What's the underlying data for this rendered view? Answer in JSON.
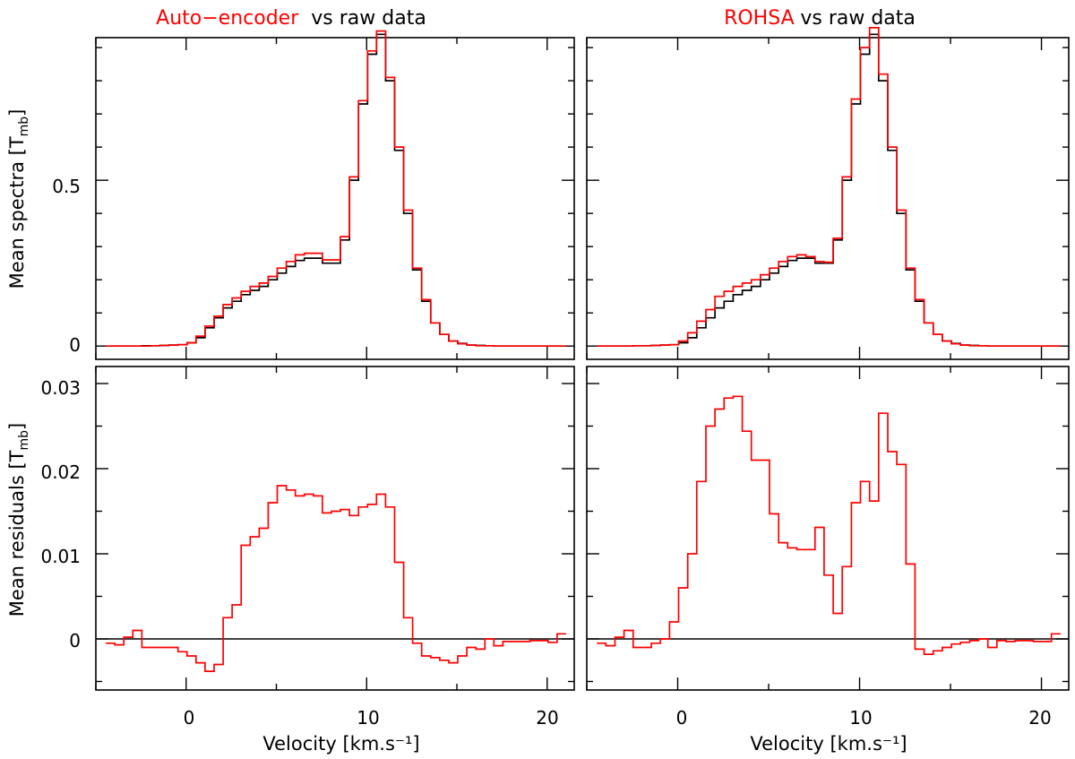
{
  "colors": {
    "model": "#ff0000",
    "raw": "#000000",
    "frame": "#000000",
    "zero_line": "#000000"
  },
  "titles": {
    "left": {
      "model": "Auto−encoder",
      "rest": "vs raw data"
    },
    "right": {
      "model": "ROHSA",
      "rest": "vs raw data"
    }
  },
  "axis_labels": {
    "x": "Velocity [km.s⁻¹]",
    "y_top": "Mean spectra [T",
    "y_top_sub": "mb",
    "y_bottom": "Mean residuals [T",
    "y_bottom_sub": "mb",
    "close": "]"
  },
  "ticks": {
    "x": [
      "0",
      "10",
      "20"
    ],
    "y_top": [
      "0",
      "0.5"
    ],
    "y_bottom": [
      "0",
      "0.01",
      "0.02",
      "0.03"
    ]
  },
  "chart_data": [
    {
      "id": "top-left",
      "type": "line",
      "step": true,
      "xlim": [
        -5,
        21.5
      ],
      "ylim": [
        -0.04,
        0.93
      ],
      "x": [
        -4.2,
        -3.7,
        -3.2,
        -2.7,
        -2.2,
        -1.7,
        -1.2,
        -0.7,
        -0.2,
        0.3,
        0.8,
        1.3,
        1.8,
        2.3,
        2.8,
        3.3,
        3.8,
        4.3,
        4.8,
        5.3,
        5.8,
        6.3,
        6.8,
        7.3,
        7.8,
        8.3,
        8.8,
        9.3,
        9.8,
        10.3,
        10.8,
        11.3,
        11.8,
        12.3,
        12.8,
        13.3,
        13.8,
        14.3,
        14.8,
        15.3,
        15.8,
        16.3,
        16.8,
        17.3,
        17.8,
        18.3,
        18.8,
        19.3,
        19.8,
        20.3,
        20.8
      ],
      "series": [
        {
          "values": [
            0.0,
            0.0,
            0.0,
            0.0,
            0.001,
            0.001,
            0.002,
            0.003,
            0.004,
            0.01,
            0.025,
            0.055,
            0.085,
            0.115,
            0.135,
            0.155,
            0.168,
            0.18,
            0.2,
            0.22,
            0.24,
            0.258,
            0.265,
            0.265,
            0.25,
            0.25,
            0.32,
            0.5,
            0.73,
            0.88,
            0.94,
            0.8,
            0.59,
            0.4,
            0.23,
            0.135,
            0.07,
            0.035,
            0.015,
            0.008,
            0.003,
            0.002,
            0.001,
            0.0,
            0.0,
            0.0,
            0.0,
            0.0,
            0.0,
            0.0,
            0.0
          ]
        },
        {
          "values": [
            0.0,
            0.0,
            0.0,
            0.0,
            0.0,
            0.001,
            0.002,
            0.003,
            0.004,
            0.01,
            0.03,
            0.06,
            0.09,
            0.125,
            0.145,
            0.165,
            0.18,
            0.19,
            0.21,
            0.235,
            0.255,
            0.275,
            0.28,
            0.28,
            0.26,
            0.26,
            0.33,
            0.51,
            0.74,
            0.89,
            0.95,
            0.81,
            0.6,
            0.41,
            0.235,
            0.14,
            0.07,
            0.035,
            0.015,
            0.007,
            0.003,
            0.001,
            0.001,
            0.0,
            0.0,
            0.0,
            0.0,
            0.0,
            0.0,
            0.0,
            0.0
          ]
        }
      ]
    },
    {
      "id": "top-right",
      "type": "line",
      "step": true,
      "xlim": [
        -5,
        21.5
      ],
      "ylim": [
        -0.04,
        0.93
      ],
      "x": [
        -4.2,
        -3.7,
        -3.2,
        -2.7,
        -2.2,
        -1.7,
        -1.2,
        -0.7,
        -0.2,
        0.3,
        0.8,
        1.3,
        1.8,
        2.3,
        2.8,
        3.3,
        3.8,
        4.3,
        4.8,
        5.3,
        5.8,
        6.3,
        6.8,
        7.3,
        7.8,
        8.3,
        8.8,
        9.3,
        9.8,
        10.3,
        10.8,
        11.3,
        11.8,
        12.3,
        12.8,
        13.3,
        13.8,
        14.3,
        14.8,
        15.3,
        15.8,
        16.3,
        16.8,
        17.3,
        17.8,
        18.3,
        18.8,
        19.3,
        19.8,
        20.3,
        20.8
      ],
      "series": [
        {
          "values": [
            0.0,
            0.0,
            0.0,
            0.0,
            0.001,
            0.001,
            0.002,
            0.003,
            0.004,
            0.01,
            0.025,
            0.055,
            0.085,
            0.115,
            0.135,
            0.155,
            0.168,
            0.18,
            0.2,
            0.22,
            0.24,
            0.258,
            0.265,
            0.265,
            0.25,
            0.25,
            0.32,
            0.5,
            0.73,
            0.88,
            0.94,
            0.8,
            0.59,
            0.4,
            0.23,
            0.135,
            0.07,
            0.035,
            0.015,
            0.008,
            0.003,
            0.002,
            0.001,
            0.0,
            0.0,
            0.0,
            0.0,
            0.0,
            0.0,
            0.0,
            0.0
          ]
        },
        {
          "values": [
            0.0,
            0.0,
            0.0,
            0.0,
            0.001,
            0.001,
            0.002,
            0.003,
            0.004,
            0.015,
            0.04,
            0.075,
            0.11,
            0.15,
            0.165,
            0.18,
            0.19,
            0.2,
            0.215,
            0.235,
            0.255,
            0.27,
            0.275,
            0.27,
            0.255,
            0.253,
            0.325,
            0.51,
            0.745,
            0.9,
            0.96,
            0.82,
            0.6,
            0.41,
            0.235,
            0.14,
            0.07,
            0.035,
            0.015,
            0.007,
            0.003,
            0.001,
            0.001,
            0.0,
            0.0,
            0.0,
            0.0,
            0.0,
            0.0,
            0.0,
            0.0
          ]
        }
      ]
    },
    {
      "id": "bottom-left",
      "type": "line",
      "step": true,
      "xlim": [
        -5,
        21.5
      ],
      "ylim": [
        -0.006,
        0.032
      ],
      "zero_line": true,
      "x": [
        -4.2,
        -3.7,
        -3.2,
        -2.7,
        -2.2,
        -1.7,
        -1.2,
        -0.7,
        -0.2,
        0.3,
        0.8,
        1.3,
        1.8,
        2.3,
        2.8,
        3.3,
        3.8,
        4.3,
        4.8,
        5.3,
        5.8,
        6.3,
        6.8,
        7.3,
        7.8,
        8.3,
        8.8,
        9.3,
        9.8,
        10.3,
        10.8,
        11.3,
        11.8,
        12.3,
        12.8,
        13.3,
        13.8,
        14.3,
        14.8,
        15.3,
        15.8,
        16.3,
        16.8,
        17.3,
        17.8,
        18.3,
        18.8,
        19.3,
        19.8,
        20.3,
        20.8
      ],
      "series": [
        {
          "values": [
            -0.0005,
            -0.0007,
            0.0002,
            0.001,
            -0.001,
            -0.001,
            -0.001,
            -0.001,
            -0.0015,
            -0.002,
            -0.0028,
            -0.0038,
            -0.003,
            0.0025,
            0.004,
            0.011,
            0.012,
            0.013,
            0.016,
            0.018,
            0.0175,
            0.0168,
            0.017,
            0.0168,
            0.0148,
            0.015,
            0.0152,
            0.0145,
            0.0155,
            0.0158,
            0.017,
            0.0155,
            0.009,
            0.0025,
            -0.0005,
            -0.002,
            -0.0022,
            -0.0025,
            -0.0028,
            -0.002,
            -0.001,
            -0.0012,
            0.0,
            -0.0008,
            -0.0003,
            -0.0003,
            -0.0003,
            -0.0002,
            -0.0002,
            -0.0004,
            0.0006
          ]
        }
      ]
    },
    {
      "id": "bottom-right",
      "type": "line",
      "step": true,
      "xlim": [
        -5,
        21.5
      ],
      "ylim": [
        -0.006,
        0.032
      ],
      "zero_line": true,
      "x": [
        -4.2,
        -3.7,
        -3.2,
        -2.7,
        -2.2,
        -1.7,
        -1.2,
        -0.7,
        -0.2,
        0.3,
        0.8,
        1.3,
        1.8,
        2.3,
        2.8,
        3.3,
        3.8,
        4.3,
        4.8,
        5.3,
        5.8,
        6.3,
        6.8,
        7.3,
        7.8,
        8.3,
        8.8,
        9.3,
        9.8,
        10.3,
        10.8,
        11.3,
        11.8,
        12.3,
        12.8,
        13.3,
        13.8,
        14.3,
        14.8,
        15.3,
        15.8,
        16.3,
        16.8,
        17.3,
        17.8,
        18.3,
        18.8,
        19.3,
        19.8,
        20.3,
        20.8
      ],
      "series": [
        {
          "values": [
            -0.0005,
            -0.0008,
            0.0002,
            0.001,
            -0.001,
            -0.001,
            -0.0005,
            0.0,
            0.002,
            0.006,
            0.01,
            0.0185,
            0.025,
            0.027,
            0.0283,
            0.0285,
            0.0244,
            0.021,
            0.021,
            0.0147,
            0.0113,
            0.0107,
            0.0105,
            0.0105,
            0.0131,
            0.0075,
            0.003,
            0.0085,
            0.016,
            0.0185,
            0.0162,
            0.0265,
            0.022,
            0.0205,
            0.0088,
            -0.0012,
            -0.0018,
            -0.0014,
            -0.001,
            -0.0006,
            -0.0004,
            -0.0002,
            0.0,
            -0.001,
            -0.0002,
            -0.0003,
            -0.0002,
            -0.0002,
            -0.0003,
            -0.0003,
            0.0006
          ]
        }
      ]
    }
  ]
}
